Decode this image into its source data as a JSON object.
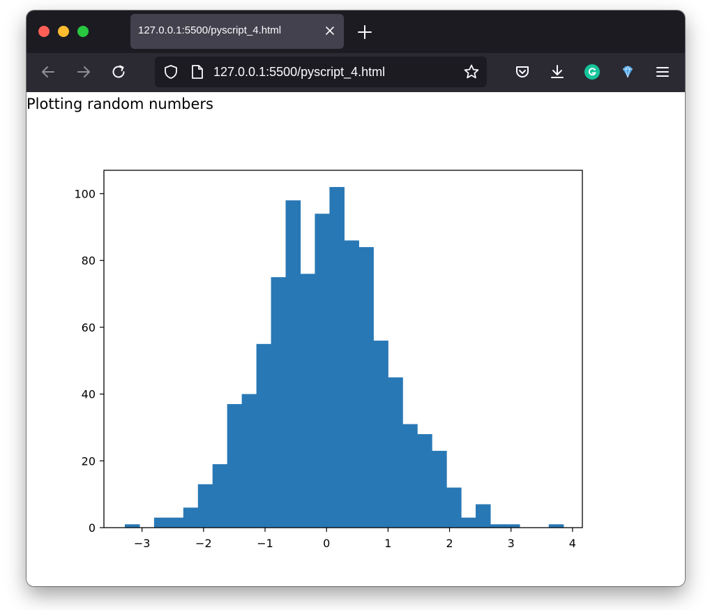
{
  "browser": {
    "tab_title": "127.0.0.1:5500/pyscript_4.html",
    "url": "127.0.0.1:5500/pyscript_4.html",
    "icons": [
      "back-arrow-icon",
      "forward-arrow-icon",
      "reload-icon",
      "shield-icon",
      "page-icon",
      "star-icon",
      "pocket-icon",
      "download-icon",
      "grammarly-icon",
      "extension-gem-icon",
      "hamburger-menu-icon"
    ],
    "colors": {
      "tab_bar": "#1c1b22",
      "toolbar": "#2b2a33",
      "active_tab": "#42414d",
      "close_dot": "#ff5f57",
      "minimize_dot": "#febc2e",
      "zoom_dot": "#28c840",
      "grammarly": "#15c39a"
    }
  },
  "page": {
    "text": "Plotting random numbers"
  },
  "chart_data": {
    "type": "bar",
    "subtype": "histogram",
    "bar_color": "#2878b5",
    "bin_start": -3.28,
    "bin_width": 0.2377,
    "values": [
      1,
      0,
      3,
      3,
      6,
      13,
      19,
      37,
      40,
      55,
      75,
      98,
      76,
      94,
      102,
      86,
      84,
      56,
      45,
      31,
      28,
      23,
      12,
      3,
      7,
      1,
      1,
      0,
      0,
      1
    ],
    "xlim": [
      -3.62,
      4.16
    ],
    "ylim": [
      0,
      107
    ],
    "xticks": [
      {
        "value": -3,
        "label": "−3"
      },
      {
        "value": -2,
        "label": "−2"
      },
      {
        "value": -1,
        "label": "−1"
      },
      {
        "value": 0,
        "label": "0"
      },
      {
        "value": 1,
        "label": "1"
      },
      {
        "value": 2,
        "label": "2"
      },
      {
        "value": 3,
        "label": "3"
      },
      {
        "value": 4,
        "label": "4"
      }
    ],
    "yticks": [
      {
        "value": 0,
        "label": "0"
      },
      {
        "value": 20,
        "label": "20"
      },
      {
        "value": 40,
        "label": "40"
      },
      {
        "value": 60,
        "label": "60"
      },
      {
        "value": 80,
        "label": "80"
      },
      {
        "value": 100,
        "label": "100"
      }
    ],
    "title": "",
    "xlabel": "",
    "ylabel": "",
    "grid": false,
    "legend": false
  }
}
